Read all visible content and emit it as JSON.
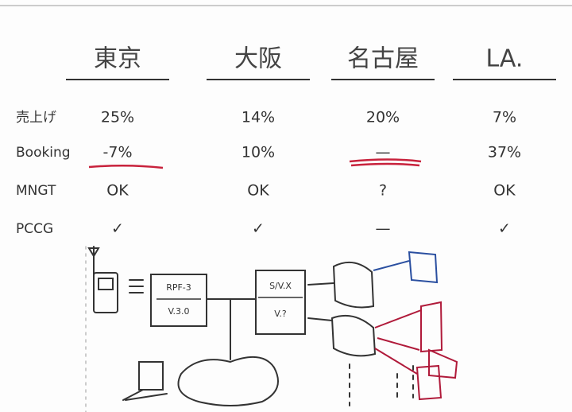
{
  "table": {
    "header": [
      "東京",
      "大阪",
      "名古屋",
      "LA."
    ],
    "rows": [
      [
        "売上げ",
        "25%",
        "14%",
        "20%",
        "7%"
      ],
      [
        "Booking",
        "-7%",
        "10%",
        "—",
        "37%"
      ],
      [
        "MNGT",
        "OK",
        "OK",
        "?",
        "OK"
      ],
      [
        "PCCG",
        "✓",
        "✓",
        "—",
        "✓"
      ]
    ]
  },
  "diagram": {
    "boxes": [
      {
        "title": "RPF-3",
        "version": "V.3.0"
      },
      {
        "title": "S/V.X",
        "version": "V.?"
      }
    ]
  }
}
